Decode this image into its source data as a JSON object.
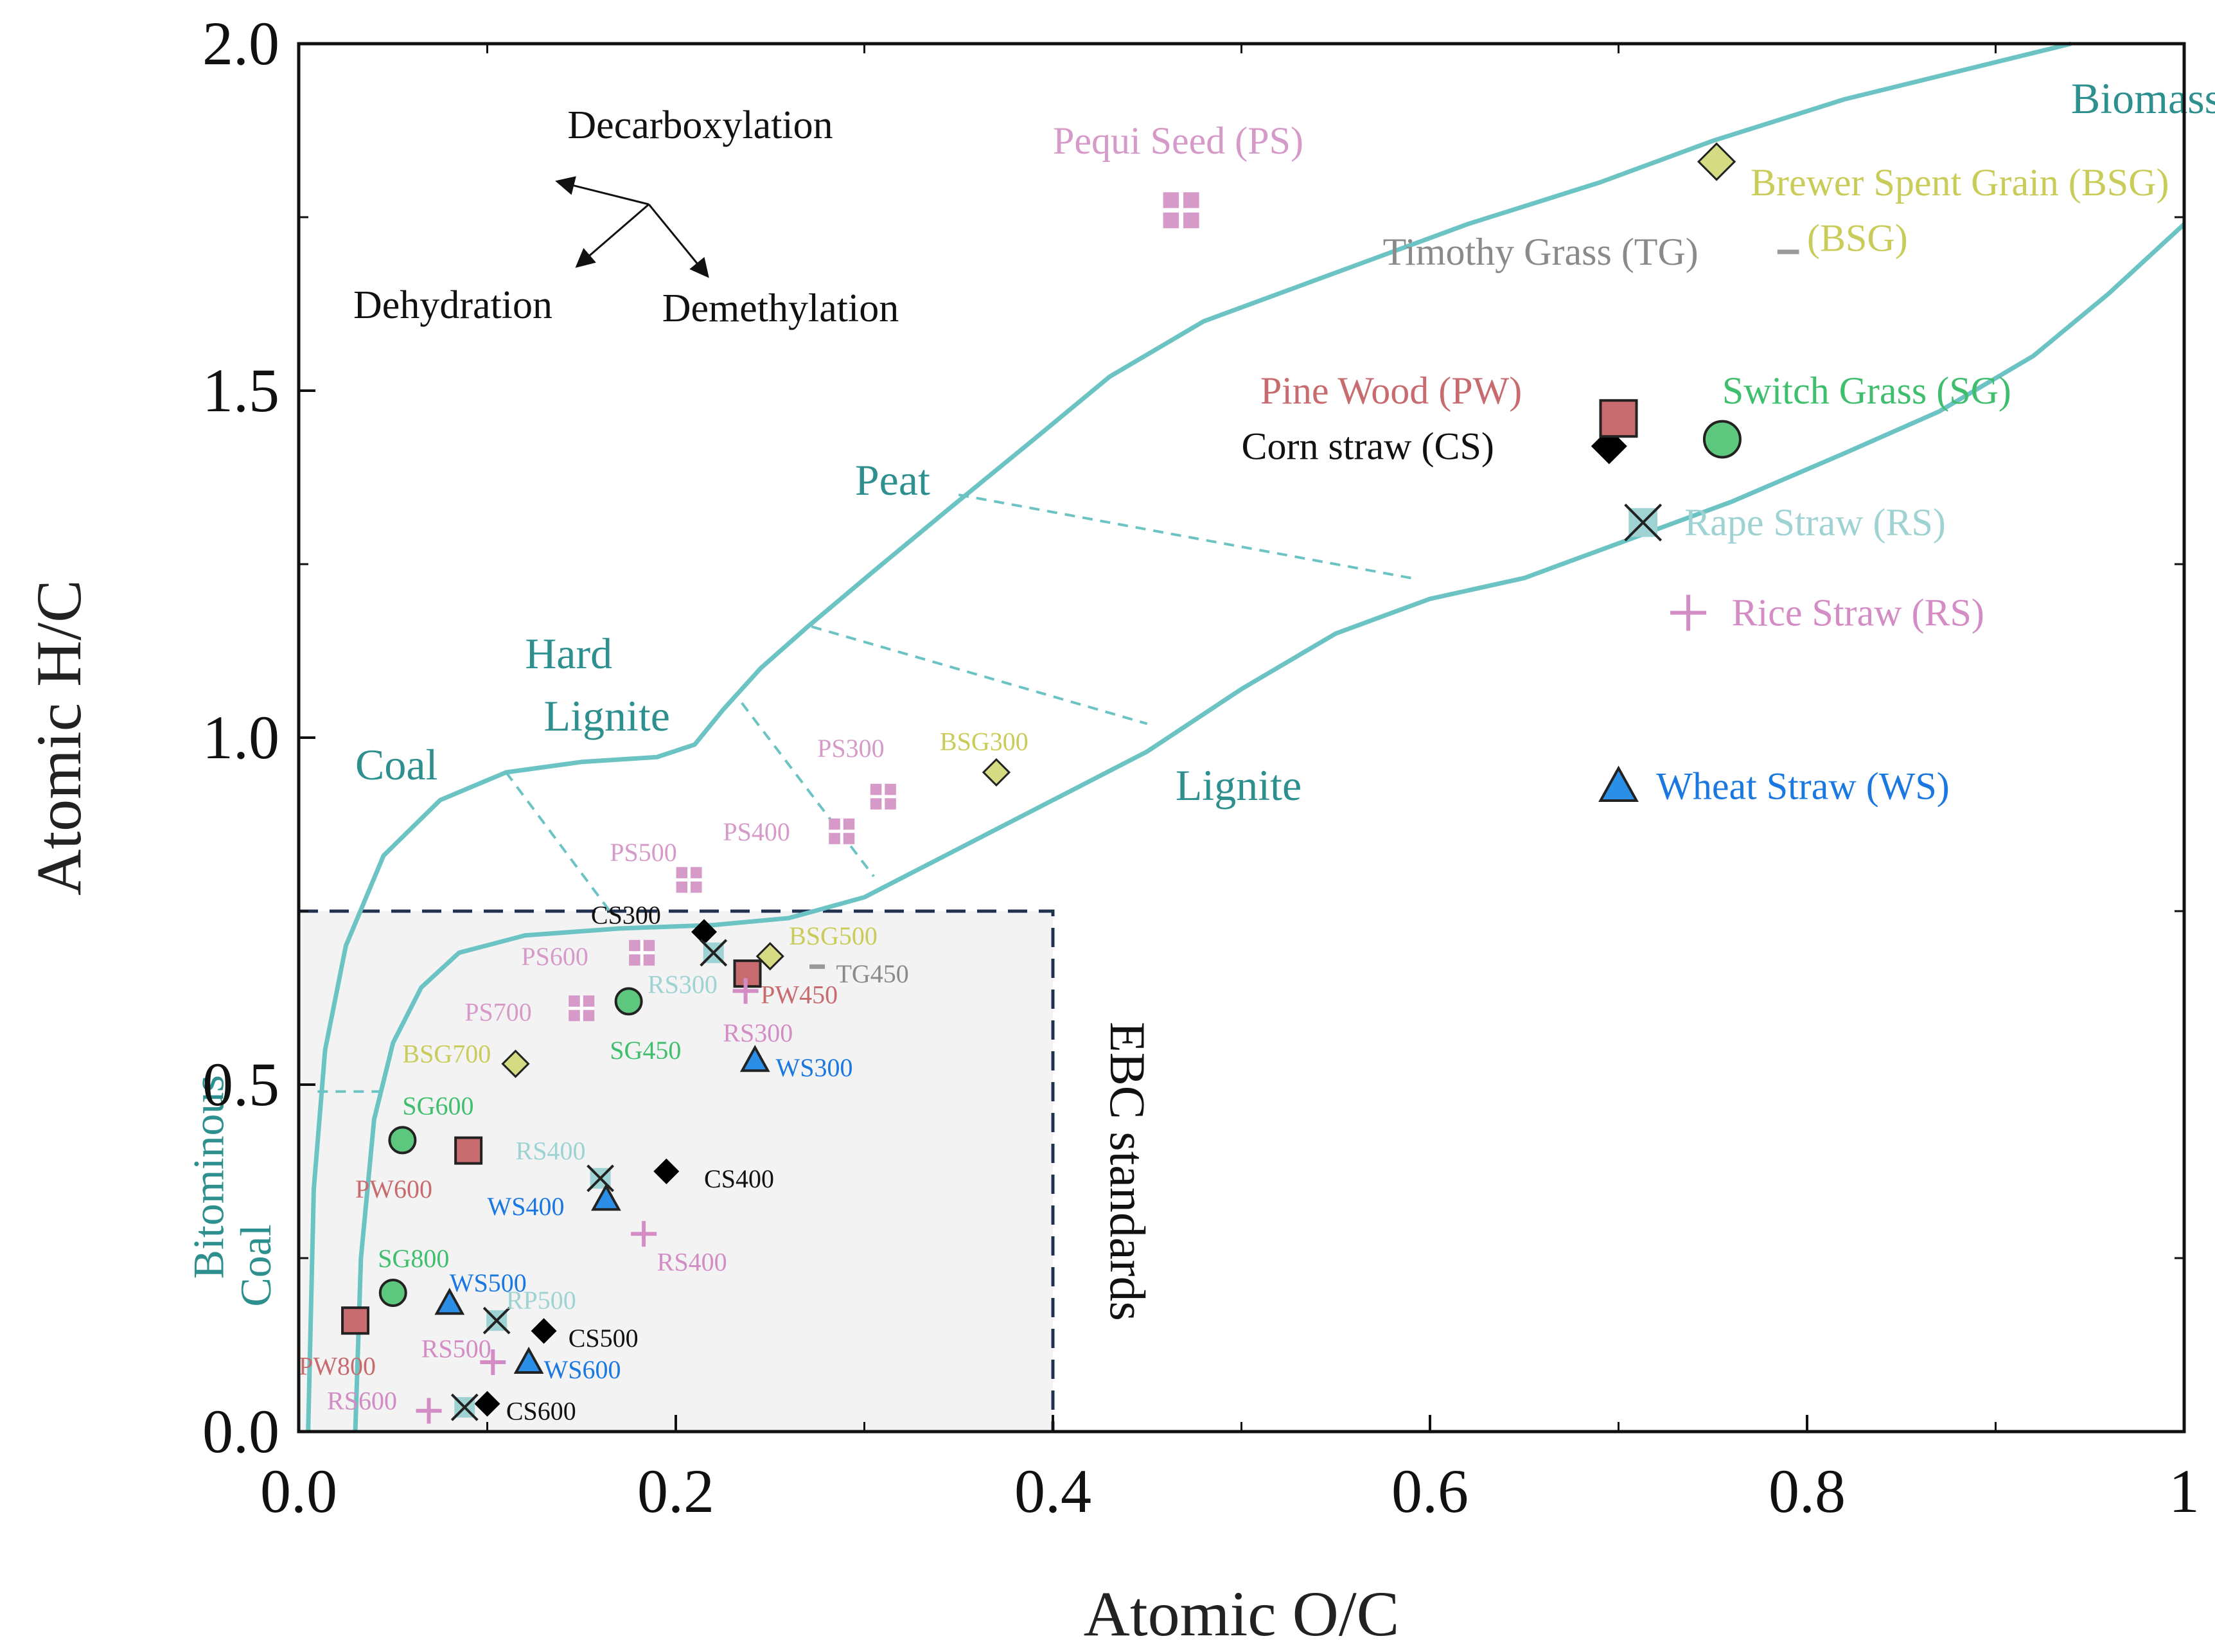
{
  "chart_data": {
    "type": "scatter",
    "title": "",
    "xlabel": "Atomic O/C",
    "ylabel": "Atomic H/C",
    "xlim": [
      0,
      1
    ],
    "ylim": [
      0,
      2
    ],
    "x_ticks": [
      "0.0",
      "0.2",
      "0.4",
      "0.6",
      "0.8",
      "1"
    ],
    "y_ticks": [
      "0.0",
      "0.5",
      "1.0",
      "1.5",
      "2.0"
    ],
    "grid": false,
    "colors": {
      "axis": "#111111",
      "region_line": "#6cc3c3",
      "region_text": "#2e8f8f",
      "ebc_box_fill": "#f3f3f3",
      "ebc_box_border": "#1f3350",
      "cs": "#000000",
      "pw": "#c76b6f",
      "ps": "#d69ac9",
      "bsg": "#c9cc59",
      "bsg_marker": "#d5db83",
      "sg": "#5dc87d",
      "sg_text": "#3fbf6d",
      "rape": "#9fd3d3",
      "rice": "#d48cc5",
      "ws": "#2b8fe8",
      "ws_text": "#1a78e0",
      "tg": "#999999"
    },
    "region_labels": [
      {
        "text": "Biomass",
        "x": 0.94,
        "y": 1.9
      },
      {
        "text": "Peat",
        "x": 0.295,
        "y": 1.35
      },
      {
        "text": "Hard",
        "x": 0.12,
        "y": 1.1
      },
      {
        "text": "Lignite",
        "x": 0.13,
        "y": 1.01
      },
      {
        "text": "Coal",
        "x": 0.03,
        "y": 0.94
      },
      {
        "text": "Lignite",
        "x": 0.465,
        "y": 0.91
      },
      {
        "text": "Bitominous",
        "x": -0.04,
        "y": 0.22,
        "rotated": true
      },
      {
        "text": "Coal",
        "x": -0.015,
        "y": 0.18,
        "rotated": true
      }
    ],
    "ebc_label": "EBC standards",
    "ebc_box": {
      "x": [
        0,
        0.4
      ],
      "y": [
        0,
        0.75
      ]
    },
    "mechanisms": {
      "decarboxylation": "Decarboxylation",
      "dehydration": "Dehydration",
      "demethylation": "Demethylation"
    },
    "series": [
      {
        "id": "cs",
        "name": "Corn straw (CS)",
        "marker": "diamond",
        "color": "#000000",
        "text_color": "#111111",
        "raw": {
          "x": 0.695,
          "y": 1.42,
          "label_x": 0.5,
          "label_y": 1.42
        },
        "points": [
          {
            "label": "CS300",
            "x": 0.215,
            "y": 0.72,
            "lx": 0.155,
            "ly": 0.745
          },
          {
            "label": "CS400",
            "x": 0.195,
            "y": 0.375,
            "lx": 0.215,
            "ly": 0.365
          },
          {
            "label": "CS500",
            "x": 0.13,
            "y": 0.145,
            "lx": 0.143,
            "ly": 0.135
          },
          {
            "label": "CS600",
            "x": 0.1,
            "y": 0.04,
            "lx": 0.11,
            "ly": 0.03
          }
        ]
      },
      {
        "id": "pw",
        "name": "Pine Wood (PW)",
        "marker": "square",
        "color": "#c76b6f",
        "text_color": "#c76b6f",
        "raw": {
          "x": 0.7,
          "y": 1.46,
          "label_x": 0.51,
          "label_y": 1.5
        },
        "points": [
          {
            "label": "PW450",
            "x": 0.238,
            "y": 0.66,
            "lx": 0.245,
            "ly": 0.63
          },
          {
            "label": "PW600",
            "x": 0.09,
            "y": 0.405,
            "lx": 0.03,
            "ly": 0.35
          },
          {
            "label": "PW800",
            "x": 0.03,
            "y": 0.16,
            "lx": 0.0,
            "ly": 0.095
          }
        ]
      },
      {
        "id": "ps",
        "name": "Pequi Seed (PS)",
        "marker": "square-cross",
        "color": "#d69ac9",
        "text_color": "#d69ac9",
        "raw": {
          "x": 0.468,
          "y": 1.76,
          "label_x": 0.4,
          "label_y": 1.86
        },
        "points": [
          {
            "label": "PS300",
            "x": 0.31,
            "y": 0.915,
            "lx": 0.275,
            "ly": 0.985
          },
          {
            "label": "PS400",
            "x": 0.288,
            "y": 0.865,
            "lx": 0.225,
            "ly": 0.865
          },
          {
            "label": "PS500",
            "x": 0.207,
            "y": 0.795,
            "lx": 0.165,
            "ly": 0.835
          },
          {
            "label": "PS600",
            "x": 0.182,
            "y": 0.69,
            "lx": 0.118,
            "ly": 0.685
          },
          {
            "label": "PS700",
            "x": 0.15,
            "y": 0.61,
            "lx": 0.088,
            "ly": 0.605
          }
        ]
      },
      {
        "id": "bsg",
        "name": "Brewer Spent Grain (BSG)",
        "marker": "diamond",
        "color": "#d5db83",
        "text_color": "#c9cc59",
        "raw": {
          "x": 0.752,
          "y": 1.83,
          "label_x": 0.77,
          "label_y": 1.8,
          "label_line2": "(BSG)",
          "label2_x": 0.8,
          "label2_y": 1.72
        },
        "points": [
          {
            "label": "BSG300",
            "x": 0.37,
            "y": 0.95,
            "lx": 0.34,
            "ly": 0.995
          },
          {
            "label": "BSG500",
            "x": 0.25,
            "y": 0.685,
            "lx": 0.26,
            "ly": 0.715
          },
          {
            "label": "BSG700",
            "x": 0.115,
            "y": 0.53,
            "lx": 0.055,
            "ly": 0.545
          }
        ]
      },
      {
        "id": "sg",
        "name": "Switch Grass (SG)",
        "marker": "circle",
        "color": "#5dc87d",
        "text_color": "#3fbf6d",
        "raw": {
          "x": 0.755,
          "y": 1.43,
          "label_x": 0.755,
          "label_y": 1.5
        },
        "points": [
          {
            "label": "SG450",
            "x": 0.175,
            "y": 0.62,
            "lx": 0.165,
            "ly": 0.55
          },
          {
            "label": "SG600",
            "x": 0.055,
            "y": 0.42,
            "lx": 0.055,
            "ly": 0.47
          },
          {
            "label": "SG800",
            "x": 0.05,
            "y": 0.2,
            "lx": 0.042,
            "ly": 0.25
          }
        ]
      },
      {
        "id": "rape",
        "name": "Rape Straw (RS)",
        "marker": "square-x",
        "color": "#9fd3d3",
        "text_color": "#9fd3d3",
        "raw": {
          "x": 0.713,
          "y": 1.31,
          "label_x": 0.735,
          "label_y": 1.31
        },
        "points": [
          {
            "label": "RS300",
            "x": 0.22,
            "y": 0.69,
            "lx": 0.185,
            "ly": 0.645
          },
          {
            "label": "RS400",
            "x": 0.16,
            "y": 0.365,
            "lx": 0.115,
            "ly": 0.405
          },
          {
            "label": "RP500",
            "x": 0.105,
            "y": 0.16,
            "lx": 0.11,
            "ly": 0.19
          },
          {
            "label": "RS600",
            "x": 0.088,
            "y": 0.035,
            "lx": 0.015,
            "ly": 0.045
          }
        ]
      },
      {
        "id": "rice",
        "name": "Rice Straw (RS)",
        "marker": "plus",
        "color": "#d48cc5",
        "text_color": "#d48cc5",
        "raw": {
          "x": 0.737,
          "y": 1.18,
          "label_x": 0.76,
          "label_y": 1.18
        },
        "points": [
          {
            "label": "RS300",
            "x": 0.237,
            "y": 0.635,
            "lx": 0.225,
            "ly": 0.575
          },
          {
            "label": "RS400",
            "x": 0.183,
            "y": 0.285,
            "lx": 0.19,
            "ly": 0.245
          },
          {
            "label": "RS500",
            "x": 0.103,
            "y": 0.1,
            "lx": 0.065,
            "ly": 0.12
          },
          {
            "label": "RS600",
            "x": 0.069,
            "y": 0.03,
            "lx": 0.015,
            "ly": 0.045
          }
        ]
      },
      {
        "id": "ws",
        "name": "Wheat Straw (WS)",
        "marker": "triangle",
        "color": "#2b8fe8",
        "text_color": "#1a78e0",
        "raw": {
          "x": 0.7,
          "y": 0.93,
          "label_x": 0.72,
          "label_y": 0.93
        },
        "points": [
          {
            "label": "WS300",
            "x": 0.242,
            "y": 0.535,
            "lx": 0.253,
            "ly": 0.525
          },
          {
            "label": "WS400",
            "x": 0.163,
            "y": 0.335,
            "lx": 0.1,
            "ly": 0.325
          },
          {
            "label": "WS500",
            "x": 0.08,
            "y": 0.185,
            "lx": 0.08,
            "ly": 0.215
          },
          {
            "label": "WS600",
            "x": 0.122,
            "y": 0.1,
            "lx": 0.13,
            "ly": 0.09
          }
        ]
      },
      {
        "id": "tg",
        "name": "Timothy Grass (TG)",
        "marker": "dash",
        "color": "#999999",
        "text_color": "#8a8a8a",
        "raw": {
          "x": 0.79,
          "y": 1.7,
          "label_x": 0.575,
          "label_y": 1.7
        },
        "points": [
          {
            "label": "TG450",
            "x": 0.275,
            "y": 0.67,
            "lx": 0.285,
            "ly": 0.66
          }
        ]
      }
    ]
  }
}
